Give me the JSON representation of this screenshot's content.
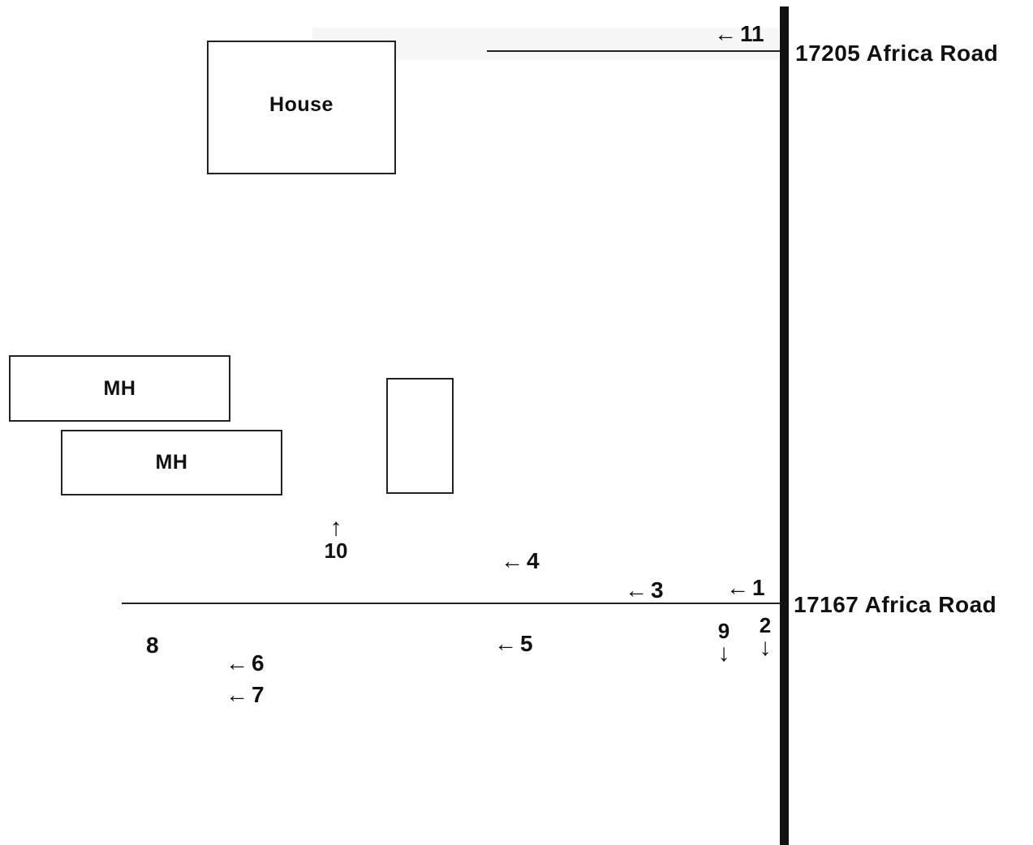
{
  "roads": {
    "upper_address": "17205 Africa Road",
    "lower_address": "17167 Africa Road"
  },
  "structures": {
    "house": "House",
    "mobile_home_1": "MH",
    "mobile_home_2": "MH",
    "outbuilding": ""
  },
  "markers": {
    "m1": "1",
    "m2": "2",
    "m3": "3",
    "m4": "4",
    "m5": "5",
    "m6": "6",
    "m7": "7",
    "m8": "8",
    "m9": "9",
    "m10": "10",
    "m11": "11"
  },
  "arrows": {
    "left": "←",
    "down": "↓",
    "up": "↑"
  }
}
